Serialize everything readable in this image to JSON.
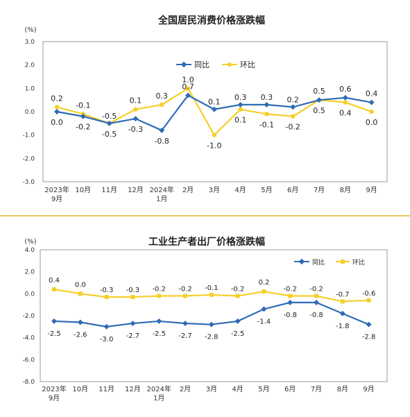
{
  "colors": {
    "yoy": "#2e6bb5",
    "mom": "#f5cf2a",
    "divider": "#e2b52a",
    "axis": "#333333",
    "border": "#999999"
  },
  "chart_data": [
    {
      "type": "line",
      "title": "全国居民消费价格涨跌幅",
      "unit": "(%)",
      "categories": [
        "2023年\n9月",
        "10月",
        "11月",
        "12月",
        "2024年\n1月",
        "2月",
        "3月",
        "4月",
        "5月",
        "6月",
        "7月",
        "8月",
        "9月"
      ],
      "yticks": [
        "3.0",
        "2.0",
        "1.0",
        "0.0",
        "-1.0",
        "-2.0",
        "-3.0"
      ],
      "ylim": [
        -3,
        3
      ],
      "legend_position": "top-right",
      "series": [
        {
          "name": "同比",
          "color": "#2e6bb5",
          "values": [
            0.0,
            -0.2,
            -0.5,
            -0.3,
            -0.8,
            0.7,
            0.1,
            0.3,
            0.3,
            0.2,
            0.5,
            0.6,
            0.4
          ],
          "labels": [
            "0.0",
            "-0.2",
            "-0.5",
            "-0.3",
            "-0.8",
            "0.7",
            "0.1",
            "0.3",
            "0.3",
            "0.2",
            "0.5",
            "0.6",
            "0.4"
          ]
        },
        {
          "name": "环比",
          "color": "#f5cf2a",
          "values": [
            0.2,
            -0.1,
            -0.5,
            0.1,
            0.3,
            1.0,
            -1.0,
            0.1,
            -0.1,
            -0.2,
            0.5,
            0.4,
            0.0
          ],
          "labels": [
            "0.2",
            "-0.1",
            "-0.5",
            "0.1",
            "0.3",
            "1.0",
            "-1.0",
            "0.1",
            "-0.1",
            "-0.2",
            "0.5",
            "0.4",
            "0.0"
          ]
        }
      ]
    },
    {
      "type": "line",
      "title": "工业生产者出厂价格涨跌幅",
      "unit": "(%)",
      "categories": [
        "2023年\n9月",
        "10月",
        "11月",
        "12月",
        "2024年\n1月",
        "2月",
        "3月",
        "4月",
        "5月",
        "6月",
        "7月",
        "8月",
        "9月"
      ],
      "yticks": [
        "4.0",
        "2.0",
        "0.0",
        "-2.0",
        "-4.0",
        "-6.0",
        "-8.0"
      ],
      "ylim": [
        -8,
        4
      ],
      "legend_position": "top-right",
      "series": [
        {
          "name": "同比",
          "color": "#2e6bb5",
          "values": [
            -2.5,
            -2.6,
            -3.0,
            -2.7,
            -2.5,
            -2.7,
            -2.8,
            -2.5,
            -1.4,
            -0.8,
            -0.8,
            -1.8,
            -2.8
          ],
          "labels": [
            "-2.5",
            "-2.6",
            "-3.0",
            "-2.7",
            "-2.5",
            "-2.7",
            "-2.8",
            "-2.5",
            "-1.4",
            "-0.8",
            "-0.8",
            "-1.8",
            "-2.8"
          ]
        },
        {
          "name": "环比",
          "color": "#f5cf2a",
          "values": [
            0.4,
            0.0,
            -0.3,
            -0.3,
            -0.2,
            -0.2,
            -0.1,
            -0.2,
            0.2,
            -0.2,
            -0.2,
            -0.7,
            -0.6
          ],
          "labels": [
            "0.4",
            "0.0",
            "-0.3",
            "-0.3",
            "-0.2",
            "-0.2",
            "-0.1",
            "-0.2",
            "0.2",
            "-0.2",
            "-0.2",
            "-0.7",
            "-0.6"
          ]
        }
      ]
    }
  ]
}
